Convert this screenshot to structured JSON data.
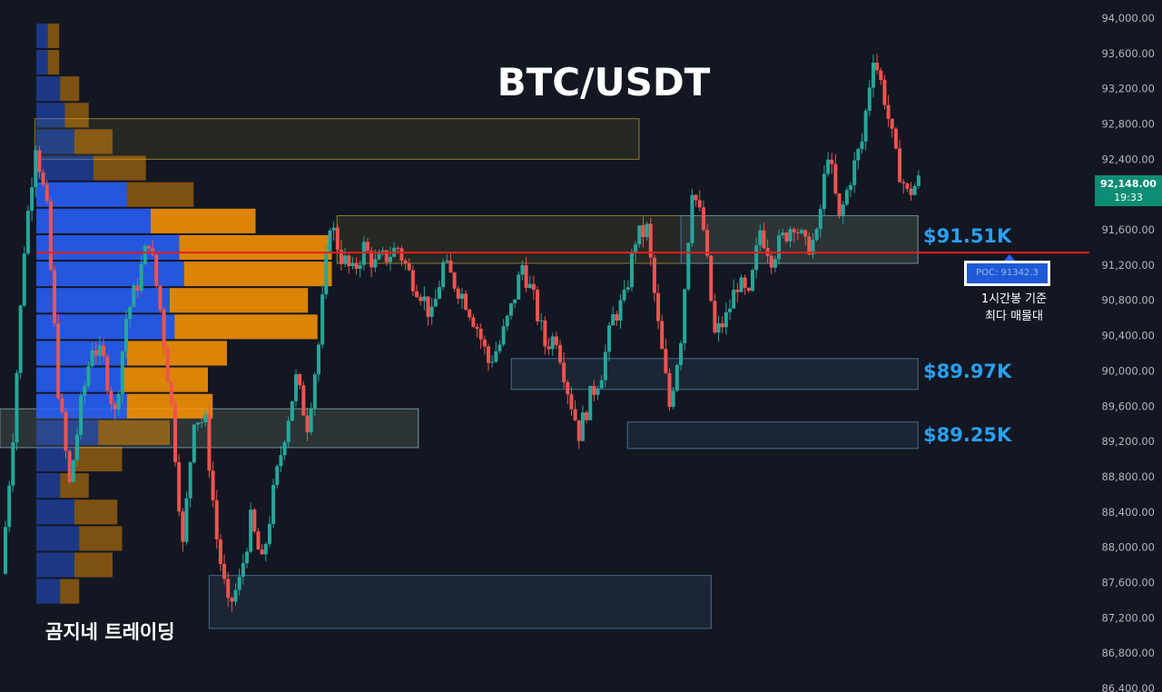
{
  "chart_data": {
    "type": "candlestick",
    "title": "BTC/USDT",
    "watermark": "곰지네 트레이딩",
    "y_axis": {
      "side": "right",
      "range": [
        86400,
        94000
      ],
      "tick_labels": [
        "94,000.00",
        "93,600.00",
        "93,200.00",
        "92,800.00",
        "92,400.00",
        "92,000.00",
        "91,600.00",
        "91,200.00",
        "90,800.00",
        "90,400.00",
        "90,000.00",
        "89,600.00",
        "89,200.00",
        "88,800.00",
        "88,400.00",
        "88,000.00",
        "87,600.00",
        "87,200.00",
        "86,800.00",
        "86,400.00"
      ],
      "tick_values": [
        94000,
        93600,
        93200,
        92800,
        92400,
        92000,
        91600,
        91200,
        90800,
        90400,
        90000,
        89600,
        89200,
        88800,
        88400,
        88000,
        87600,
        87200,
        86800,
        86400
      ]
    },
    "current_price": {
      "value": "92,148.00",
      "countdown": "19:33",
      "color": "#0c8d74"
    },
    "poc": {
      "label": "POC: 91342.3",
      "value": 91342.3,
      "note_line1": "1시간봉 기준",
      "note_line2": "최다 매물대",
      "line_color": "#e0201f"
    },
    "zone_labels": [
      {
        "text": "$91.51K",
        "value": 91510
      },
      {
        "text": "$89.97K",
        "value": 89970
      },
      {
        "text": "$89.25K",
        "value": 89250
      }
    ],
    "colors": {
      "up": "#26a69a",
      "down": "#ef5350",
      "buy_volume": "#2962ff",
      "sell_volume": "#ff9800",
      "background": "#131722"
    },
    "volume_profile": [
      {
        "price": 93800,
        "buy": 12,
        "sell": 12
      },
      {
        "price": 93500,
        "buy": 12,
        "sell": 12
      },
      {
        "price": 93200,
        "buy": 25,
        "sell": 20
      },
      {
        "price": 92900,
        "buy": 30,
        "sell": 25
      },
      {
        "price": 92600,
        "buy": 40,
        "sell": 40
      },
      {
        "price": 92300,
        "buy": 60,
        "sell": 55
      },
      {
        "price": 92000,
        "buy": 95,
        "sell": 70
      },
      {
        "price": 91700,
        "buy": 120,
        "sell": 110
      },
      {
        "price": 91400,
        "buy": 150,
        "sell": 160
      },
      {
        "price": 91100,
        "buy": 155,
        "sell": 155
      },
      {
        "price": 90800,
        "buy": 140,
        "sell": 145
      },
      {
        "price": 90500,
        "buy": 145,
        "sell": 150
      },
      {
        "price": 90200,
        "buy": 95,
        "sell": 105
      },
      {
        "price": 89900,
        "buy": 90,
        "sell": 90
      },
      {
        "price": 89600,
        "buy": 95,
        "sell": 90
      },
      {
        "price": 89300,
        "buy": 65,
        "sell": 75
      },
      {
        "price": 89000,
        "buy": 40,
        "sell": 50
      },
      {
        "price": 88700,
        "buy": 25,
        "sell": 30
      },
      {
        "price": 88400,
        "buy": 40,
        "sell": 45
      },
      {
        "price": 88100,
        "buy": 45,
        "sell": 45
      },
      {
        "price": 87800,
        "buy": 40,
        "sell": 40
      },
      {
        "price": 87500,
        "buy": 25,
        "sell": 20
      }
    ],
    "zones": [
      {
        "x0": 0.03,
        "x1": 0.55,
        "y_low": 92400,
        "y_high": 92860,
        "color": "#b9a53a"
      },
      {
        "x0": 0.29,
        "x1": 0.79,
        "y_low": 91220,
        "y_high": 91760,
        "color": "#b9a53a"
      },
      {
        "x0": 0.0,
        "x1": 0.36,
        "y_low": 89130,
        "y_high": 89570,
        "color": "#b9a53a"
      },
      {
        "x0": 0.586,
        "x1": 0.79,
        "y_low": 91220,
        "y_high": 91760,
        "color": "#5b8ec1"
      },
      {
        "x0": 0.44,
        "x1": 0.79,
        "y_low": 89790,
        "y_high": 90140,
        "color": "#5b8ec1"
      },
      {
        "x0": 0.54,
        "x1": 0.79,
        "y_low": 89120,
        "y_high": 89420,
        "color": "#5b8ec1"
      },
      {
        "x0": 0.0,
        "x1": 0.36,
        "y_low": 89130,
        "y_high": 89570,
        "color": "#5b8ec1"
      },
      {
        "x0": 0.18,
        "x1": 0.612,
        "y_low": 87080,
        "y_high": 87680,
        "color": "#5b8ec1"
      }
    ],
    "candles_close_path": [
      87700,
      89300,
      91400,
      92600,
      91800,
      89800,
      88700,
      89600,
      90300,
      90100,
      89500,
      90600,
      91000,
      91500,
      90700,
      89600,
      88000,
      89500,
      89400,
      88100,
      87300,
      87600,
      88300,
      87800,
      88600,
      89300,
      89900,
      89400,
      90300,
      91700,
      91300,
      91100,
      91400,
      91200,
      91300,
      91400,
      91100,
      90900,
      90600,
      91200,
      91000,
      90800,
      90500,
      90100,
      90300,
      90700,
      91200,
      90800,
      90300,
      90400,
      89800,
      89300,
      89700,
      90000,
      90600,
      90800,
      91500,
      91600,
      90500,
      89600,
      90400,
      92100,
      91600,
      90400,
      90600,
      91000,
      90800,
      91600,
      91300,
      91500,
      91700,
      91400,
      91500,
      92500,
      91700,
      92200,
      92600,
      93600,
      93100,
      92400,
      92000,
      92148
    ]
  }
}
